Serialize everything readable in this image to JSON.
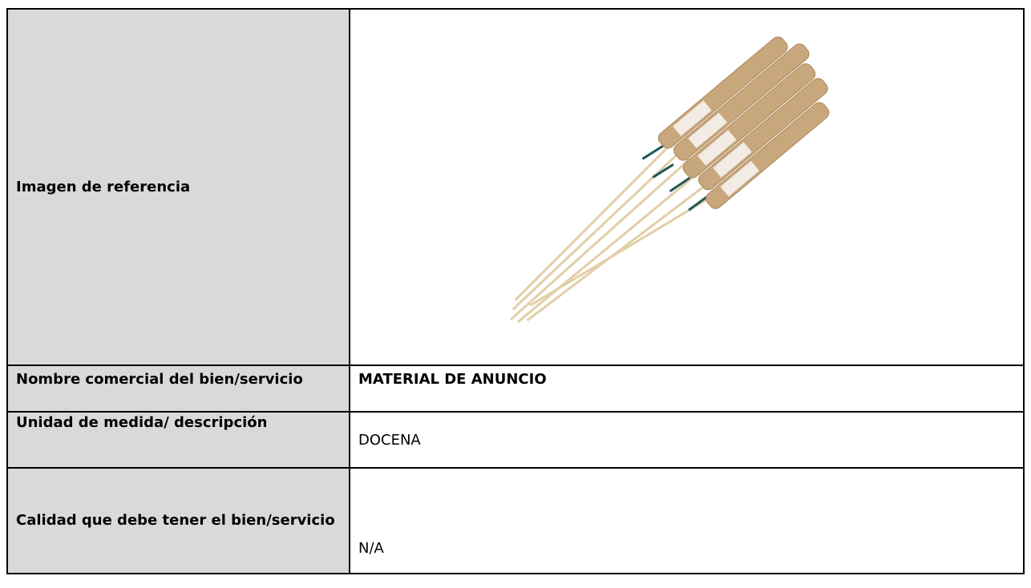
{
  "table": {
    "rows": [
      {
        "label": "Imagen de referencia"
      },
      {
        "label": "Nombre comercial del bien/servicio",
        "value": "MATERIAL DE ANUNCIO"
      },
      {
        "label": "Unidad de medida/ descripción",
        "value": "DOCENA"
      },
      {
        "label": "Calidad que debe tener el bien/servicio",
        "value": "N/A"
      }
    ]
  }
}
